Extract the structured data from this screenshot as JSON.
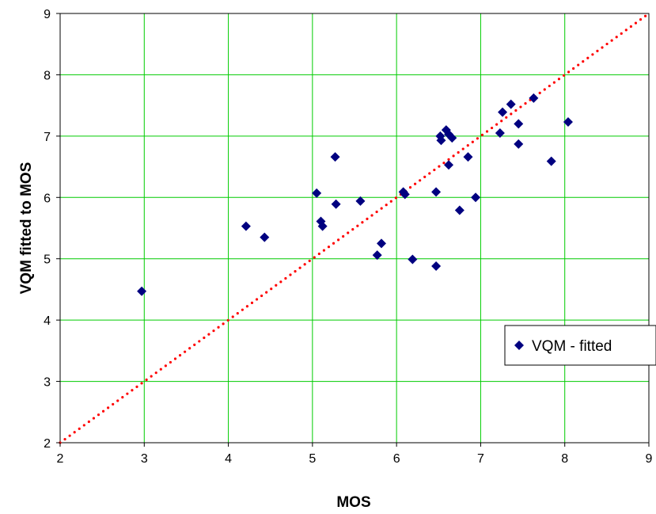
{
  "chart_data": {
    "type": "scatter",
    "xlabel": "MOS",
    "ylabel": "VQM fitted to MOS",
    "xlim": [
      2,
      9
    ],
    "ylim": [
      2,
      9
    ],
    "xticks": [
      2,
      3,
      4,
      5,
      6,
      7,
      8,
      9
    ],
    "yticks": [
      2,
      3,
      4,
      5,
      6,
      7,
      8,
      9
    ],
    "grid": true,
    "legend_position": "right",
    "colors": {
      "marker": "#000080",
      "grid": "#00cc00",
      "reference_line": "#ff0000"
    },
    "series": [
      {
        "name": "VQM - fitted",
        "marker": "diamond",
        "x": [
          2.97,
          4.21,
          4.43,
          5.05,
          5.1,
          5.12,
          5.27,
          5.28,
          5.57,
          5.77,
          5.82,
          6.08,
          6.1,
          6.19,
          6.47,
          6.47,
          6.52,
          6.53,
          6.59,
          6.62,
          6.62,
          6.66,
          6.75,
          6.85,
          6.94,
          7.23,
          7.26,
          7.36,
          7.45,
          7.45,
          7.63,
          7.84,
          8.04
        ],
        "y": [
          4.47,
          5.53,
          5.35,
          6.07,
          5.61,
          5.53,
          6.66,
          5.89,
          5.94,
          5.06,
          5.25,
          6.09,
          6.05,
          4.99,
          6.09,
          4.88,
          7.0,
          6.93,
          7.1,
          7.03,
          6.53,
          6.97,
          5.79,
          6.66,
          6.0,
          7.05,
          7.39,
          7.52,
          7.2,
          6.87,
          7.62,
          6.59,
          7.23
        ]
      }
    ],
    "reference_line": {
      "style": "dotted",
      "x": [
        2,
        9
      ],
      "y": [
        2,
        9
      ]
    }
  }
}
